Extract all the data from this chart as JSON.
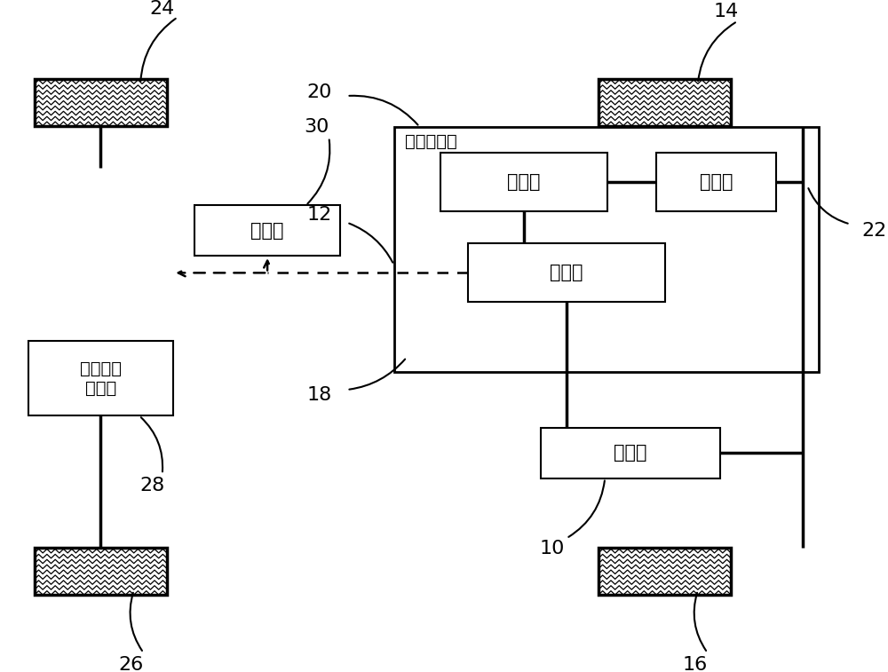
{
  "bg_color": "#ffffff",
  "labels": {
    "24": "24",
    "14": "14",
    "30": "30",
    "20": "20",
    "12": "12",
    "22": "22",
    "18": "18",
    "28": "28",
    "10": "10",
    "26": "26",
    "16": "16",
    "controller": "控制器",
    "transaxle": "变速驱动桥",
    "transmission": "变速筱",
    "differential": "差速器",
    "torque_converter": "变矩器",
    "engine": "发动机",
    "epb_line1": "电子驻车",
    "epb_line2": "制动器"
  },
  "font_size_box": 15,
  "font_size_number": 16
}
